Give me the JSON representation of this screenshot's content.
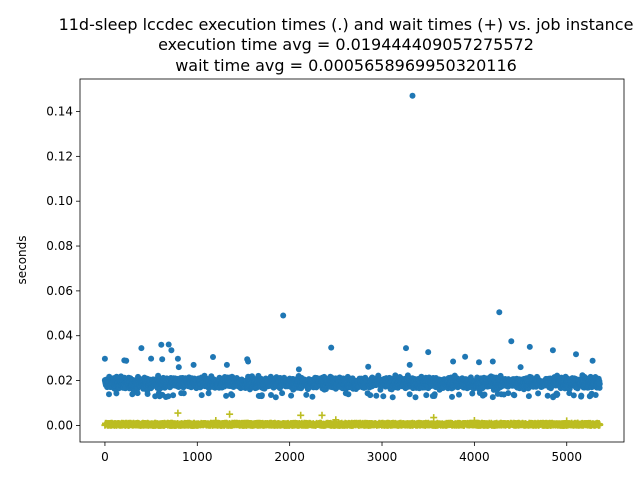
{
  "chart_data": {
    "type": "scatter",
    "title_lines": [
      "11d-sleep lccdec execution times (.) and wait times (+) vs. job instance",
      "execution time avg = 0.019444409057275572",
      "wait time avg = 0.0005658969950320116"
    ],
    "xlabel": "",
    "ylabel": "seconds",
    "xlim": [
      -270,
      5620
    ],
    "ylim": [
      -0.0074,
      0.1545
    ],
    "x_ticks": [
      0,
      1000,
      2000,
      3000,
      4000,
      5000
    ],
    "y_ticks": [
      0.0,
      0.02,
      0.04,
      0.06,
      0.08,
      0.1,
      0.12,
      0.14
    ],
    "y_tick_labels": [
      "0.00",
      "0.02",
      "0.04",
      "0.06",
      "0.08",
      "0.10",
      "0.12",
      "0.14"
    ],
    "grid": false,
    "series": [
      {
        "marker": "circle",
        "color": "#1f77b4",
        "n_points": 5360,
        "bulk_band": [
          0.0145,
          0.0235
        ],
        "outliers": [
          [
            0,
            0.0297
          ],
          [
            210,
            0.029
          ],
          [
            230,
            0.0288
          ],
          [
            395,
            0.0345
          ],
          [
            500,
            0.0298
          ],
          [
            610,
            0.036
          ],
          [
            620,
            0.0295
          ],
          [
            690,
            0.0361
          ],
          [
            720,
            0.0335
          ],
          [
            790,
            0.0297
          ],
          [
            960,
            0.027
          ],
          [
            1170,
            0.0305
          ],
          [
            1320,
            0.027
          ],
          [
            1540,
            0.0295
          ],
          [
            1550,
            0.0285
          ],
          [
            1930,
            0.049
          ],
          [
            2450,
            0.0347
          ],
          [
            2850,
            0.0262
          ],
          [
            3260,
            0.0345
          ],
          [
            3330,
            0.147
          ],
          [
            3500,
            0.0327
          ],
          [
            3770,
            0.0285
          ],
          [
            3900,
            0.0306
          ],
          [
            4050,
            0.0282
          ],
          [
            4200,
            0.0285
          ],
          [
            4270,
            0.0505
          ],
          [
            4400,
            0.0375
          ],
          [
            4600,
            0.035
          ],
          [
            4850,
            0.0335
          ],
          [
            5100,
            0.0317
          ],
          [
            5280,
            0.0288
          ],
          [
            800,
            0.026
          ],
          [
            2100,
            0.025
          ],
          [
            3300,
            0.027
          ],
          [
            4500,
            0.026
          ]
        ]
      },
      {
        "marker": "plus",
        "color": "#bcbd22",
        "n_points": 5360,
        "bulk_band": [
          0.0,
          0.0012
        ],
        "outliers": [
          [
            790,
            0.0055
          ],
          [
            1350,
            0.005
          ],
          [
            2120,
            0.0045
          ],
          [
            2350,
            0.0045
          ],
          [
            3560,
            0.0035
          ],
          [
            1200,
            0.0022
          ],
          [
            2500,
            0.0025
          ],
          [
            4000,
            0.0022
          ],
          [
            5000,
            0.002
          ]
        ]
      }
    ]
  }
}
